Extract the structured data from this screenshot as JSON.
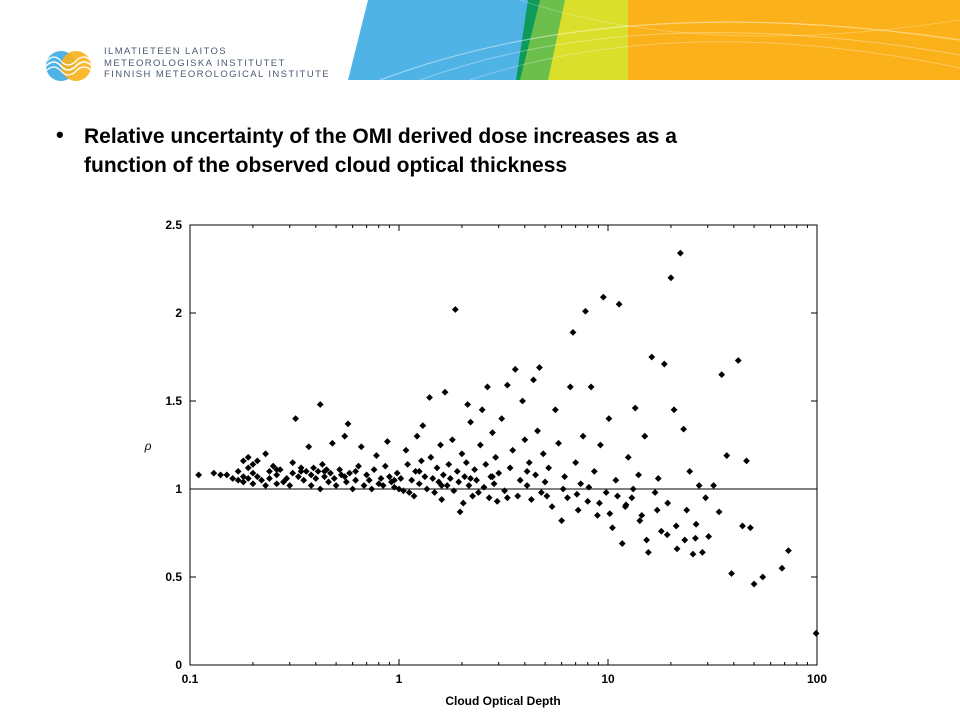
{
  "header": {
    "org_lines": [
      "ILMATIETEEN LAITOS",
      "METEOROLOGISKA INSTITUTET",
      "FINNISH METEOROLOGICAL INSTITUTE"
    ],
    "logo_icon": "fmi-logo-icon",
    "colors": {
      "blue": "#4fb3e6",
      "green": "#6cbf4a",
      "dark_green": "#0e9a5a",
      "yellow": "#d9df2a",
      "orange": "#fbb11a",
      "logo_text": "#4a5a73"
    }
  },
  "bullet": {
    "symbol": "•",
    "text_line1": "Relative uncertainty of the OMI derived dose increases as a",
    "text_line2": "function of the observed cloud optical thickness"
  },
  "chart_data": {
    "type": "scatter",
    "title": "",
    "xlabel": "Cloud Optical Depth",
    "ylabel": "ρ",
    "x_scale": "log",
    "xlim": [
      0.1,
      100
    ],
    "ylim": [
      0,
      2.5
    ],
    "x_ticks": [
      "0.1",
      "1",
      "10",
      "100"
    ],
    "y_ticks": [
      "0",
      "0.5",
      "1",
      "1.5",
      "2",
      "2.5"
    ],
    "reference_line_y": 1,
    "grid": false,
    "marker": "diamond",
    "marker_color": "#000000",
    "points": [
      [
        0.11,
        1.08
      ],
      [
        0.13,
        1.09
      ],
      [
        0.14,
        1.08
      ],
      [
        0.15,
        1.08
      ],
      [
        0.17,
        1.05
      ],
      [
        0.17,
        1.1
      ],
      [
        0.18,
        1.16
      ],
      [
        0.18,
        1.07
      ],
      [
        0.18,
        1.04
      ],
      [
        0.19,
        1.12
      ],
      [
        0.19,
        1.18
      ],
      [
        0.19,
        1.06
      ],
      [
        0.2,
        1.09
      ],
      [
        0.2,
        1.14
      ],
      [
        0.2,
        1.03
      ],
      [
        0.21,
        1.07
      ],
      [
        0.22,
        1.05
      ],
      [
        0.23,
        1.2
      ],
      [
        0.23,
        1.02
      ],
      [
        0.24,
        1.1
      ],
      [
        0.24,
        1.06
      ],
      [
        0.25,
        1.13
      ],
      [
        0.26,
        1.08
      ],
      [
        0.26,
        1.03
      ],
      [
        0.27,
        1.11
      ],
      [
        0.28,
        1.04
      ],
      [
        0.29,
        1.06
      ],
      [
        0.3,
        1.02
      ],
      [
        0.31,
        1.15
      ],
      [
        0.31,
        1.09
      ],
      [
        0.32,
        1.4
      ],
      [
        0.33,
        1.07
      ],
      [
        0.34,
        1.12
      ],
      [
        0.35,
        1.05
      ],
      [
        0.36,
        1.1
      ],
      [
        0.37,
        1.24
      ],
      [
        0.38,
        1.08
      ],
      [
        0.38,
        1.02
      ],
      [
        0.39,
        1.12
      ],
      [
        0.4,
        1.06
      ],
      [
        0.41,
        1.1
      ],
      [
        0.42,
        1.48
      ],
      [
        0.42,
        1.0
      ],
      [
        0.43,
        1.14
      ],
      [
        0.44,
        1.07
      ],
      [
        0.45,
        1.11
      ],
      [
        0.46,
        1.04
      ],
      [
        0.47,
        1.09
      ],
      [
        0.48,
        1.26
      ],
      [
        0.49,
        1.06
      ],
      [
        0.5,
        1.02
      ],
      [
        0.52,
        1.11
      ],
      [
        0.53,
        1.08
      ],
      [
        0.55,
        1.3
      ],
      [
        0.56,
        1.04
      ],
      [
        0.57,
        1.37
      ],
      [
        0.58,
        1.09
      ],
      [
        0.6,
        1.0
      ],
      [
        0.62,
        1.05
      ],
      [
        0.64,
        1.13
      ],
      [
        0.66,
        1.24
      ],
      [
        0.68,
        1.02
      ],
      [
        0.7,
        1.08
      ],
      [
        0.72,
        1.05
      ],
      [
        0.74,
        1.0
      ],
      [
        0.76,
        1.11
      ],
      [
        0.78,
        1.19
      ],
      [
        0.8,
        1.03
      ],
      [
        0.82,
        1.06
      ],
      [
        0.84,
        1.02
      ],
      [
        0.86,
        1.13
      ],
      [
        0.88,
        1.27
      ],
      [
        0.9,
        1.07
      ],
      [
        0.92,
        1.04
      ],
      [
        0.95,
        1.01
      ],
      [
        0.98,
        1.09
      ],
      [
        1.0,
        1.0
      ],
      [
        1.02,
        1.06
      ],
      [
        1.05,
        0.99
      ],
      [
        1.08,
        1.22
      ],
      [
        1.1,
        1.14
      ],
      [
        1.12,
        0.98
      ],
      [
        1.15,
        1.05
      ],
      [
        1.18,
        0.96
      ],
      [
        1.2,
        1.1
      ],
      [
        1.22,
        1.3
      ],
      [
        1.25,
        1.03
      ],
      [
        1.28,
        1.16
      ],
      [
        1.3,
        1.36
      ],
      [
        1.33,
        1.07
      ],
      [
        1.36,
        1.0
      ],
      [
        1.4,
        1.52
      ],
      [
        1.42,
        1.18
      ],
      [
        1.45,
        1.06
      ],
      [
        1.48,
        0.98
      ],
      [
        1.52,
        1.12
      ],
      [
        1.55,
        1.04
      ],
      [
        1.58,
        1.25
      ],
      [
        1.6,
        0.94
      ],
      [
        1.63,
        1.08
      ],
      [
        1.66,
        1.55
      ],
      [
        1.7,
        1.02
      ],
      [
        1.73,
        1.14
      ],
      [
        1.76,
        1.06
      ],
      [
        1.8,
        1.28
      ],
      [
        1.83,
        0.99
      ],
      [
        1.86,
        2.02
      ],
      [
        1.9,
        1.1
      ],
      [
        1.93,
        1.04
      ],
      [
        1.96,
        0.87
      ],
      [
        2.0,
        1.2
      ],
      [
        2.03,
        0.92
      ],
      [
        2.06,
        1.07
      ],
      [
        2.1,
        1.15
      ],
      [
        2.13,
        1.48
      ],
      [
        2.16,
        1.02
      ],
      [
        2.2,
        1.38
      ],
      [
        2.25,
        0.96
      ],
      [
        2.3,
        1.11
      ],
      [
        2.35,
        1.05
      ],
      [
        2.4,
        0.98
      ],
      [
        2.45,
        1.25
      ],
      [
        2.5,
        1.45
      ],
      [
        2.55,
        1.01
      ],
      [
        2.6,
        1.14
      ],
      [
        2.65,
        1.58
      ],
      [
        2.7,
        0.95
      ],
      [
        2.75,
        1.07
      ],
      [
        2.8,
        1.32
      ],
      [
        2.85,
        1.03
      ],
      [
        2.9,
        1.18
      ],
      [
        2.95,
        0.93
      ],
      [
        3.0,
        1.09
      ],
      [
        3.1,
        1.4
      ],
      [
        3.2,
        0.99
      ],
      [
        3.3,
        1.59
      ],
      [
        3.4,
        1.12
      ],
      [
        3.5,
        1.22
      ],
      [
        3.6,
        1.68
      ],
      [
        3.7,
        0.96
      ],
      [
        3.8,
        1.05
      ],
      [
        3.9,
        1.5
      ],
      [
        4.0,
        1.28
      ],
      [
        4.1,
        1.02
      ],
      [
        4.2,
        1.15
      ],
      [
        4.3,
        0.94
      ],
      [
        4.4,
        1.62
      ],
      [
        4.5,
        1.08
      ],
      [
        4.6,
        1.33
      ],
      [
        4.7,
        1.69
      ],
      [
        4.8,
        0.98
      ],
      [
        4.9,
        1.2
      ],
      [
        5.0,
        1.04
      ],
      [
        5.2,
        1.12
      ],
      [
        5.4,
        0.9
      ],
      [
        5.6,
        1.45
      ],
      [
        5.8,
        1.26
      ],
      [
        6.0,
        0.82
      ],
      [
        6.2,
        1.07
      ],
      [
        6.4,
        0.95
      ],
      [
        6.6,
        1.58
      ],
      [
        6.8,
        1.89
      ],
      [
        7.0,
        1.15
      ],
      [
        7.2,
        0.88
      ],
      [
        7.4,
        1.03
      ],
      [
        7.6,
        1.3
      ],
      [
        7.8,
        2.01
      ],
      [
        8.0,
        0.93
      ],
      [
        8.3,
        1.58
      ],
      [
        8.6,
        1.1
      ],
      [
        8.9,
        0.85
      ],
      [
        9.2,
        1.25
      ],
      [
        9.5,
        2.09
      ],
      [
        9.8,
        0.98
      ],
      [
        10.1,
        1.4
      ],
      [
        10.5,
        0.78
      ],
      [
        10.9,
        1.05
      ],
      [
        11.3,
        2.05
      ],
      [
        11.7,
        0.69
      ],
      [
        12.1,
        0.9
      ],
      [
        12.5,
        1.18
      ],
      [
        13.0,
        0.95
      ],
      [
        13.5,
        1.46
      ],
      [
        14.0,
        1.08
      ],
      [
        14.5,
        0.85
      ],
      [
        15.0,
        1.3
      ],
      [
        15.6,
        0.64
      ],
      [
        16.2,
        1.75
      ],
      [
        16.8,
        0.98
      ],
      [
        17.4,
        1.06
      ],
      [
        18.0,
        0.76
      ],
      [
        18.6,
        1.71
      ],
      [
        19.3,
        0.92
      ],
      [
        20.0,
        2.2
      ],
      [
        20.7,
        1.45
      ],
      [
        21.4,
        0.66
      ],
      [
        22.2,
        2.34
      ],
      [
        23.0,
        1.34
      ],
      [
        23.8,
        0.88
      ],
      [
        24.6,
        1.1
      ],
      [
        25.5,
        0.63
      ],
      [
        26.4,
        0.8
      ],
      [
        27.3,
        1.02
      ],
      [
        28.3,
        0.64
      ],
      [
        29.3,
        0.95
      ],
      [
        30.3,
        0.73
      ],
      [
        32.0,
        1.02
      ],
      [
        34.0,
        0.87
      ],
      [
        35.0,
        1.65
      ],
      [
        37.0,
        1.19
      ],
      [
        39.0,
        0.52
      ],
      [
        42.0,
        1.73
      ],
      [
        44.0,
        0.79
      ],
      [
        46.0,
        1.16
      ],
      [
        48.0,
        0.78
      ],
      [
        50.0,
        0.46
      ],
      [
        55.0,
        0.5
      ],
      [
        68.0,
        0.55
      ],
      [
        73.0,
        0.65
      ],
      [
        99.0,
        0.18
      ],
      [
        0.16,
        1.06
      ],
      [
        0.21,
        1.16
      ],
      [
        0.26,
        1.11
      ],
      [
        0.34,
        1.1
      ],
      [
        0.44,
        1.1
      ],
      [
        0.55,
        1.07
      ],
      [
        0.62,
        1.1
      ],
      [
        0.95,
        1.05
      ],
      [
        1.25,
        1.1
      ],
      [
        1.6,
        1.02
      ],
      [
        2.2,
        1.06
      ],
      [
        2.8,
        1.07
      ],
      [
        3.3,
        0.95
      ],
      [
        4.1,
        1.1
      ],
      [
        5.1,
        0.96
      ],
      [
        6.1,
        1.0
      ],
      [
        7.1,
        0.97
      ],
      [
        8.1,
        1.01
      ],
      [
        9.1,
        0.92
      ],
      [
        10.2,
        0.86
      ],
      [
        11.1,
        0.96
      ],
      [
        12.2,
        0.91
      ],
      [
        13.2,
        1.0
      ],
      [
        14.2,
        0.82
      ],
      [
        15.3,
        0.71
      ],
      [
        17.2,
        0.88
      ],
      [
        19.2,
        0.74
      ],
      [
        21.2,
        0.79
      ],
      [
        23.3,
        0.71
      ],
      [
        26.2,
        0.72
      ]
    ]
  }
}
